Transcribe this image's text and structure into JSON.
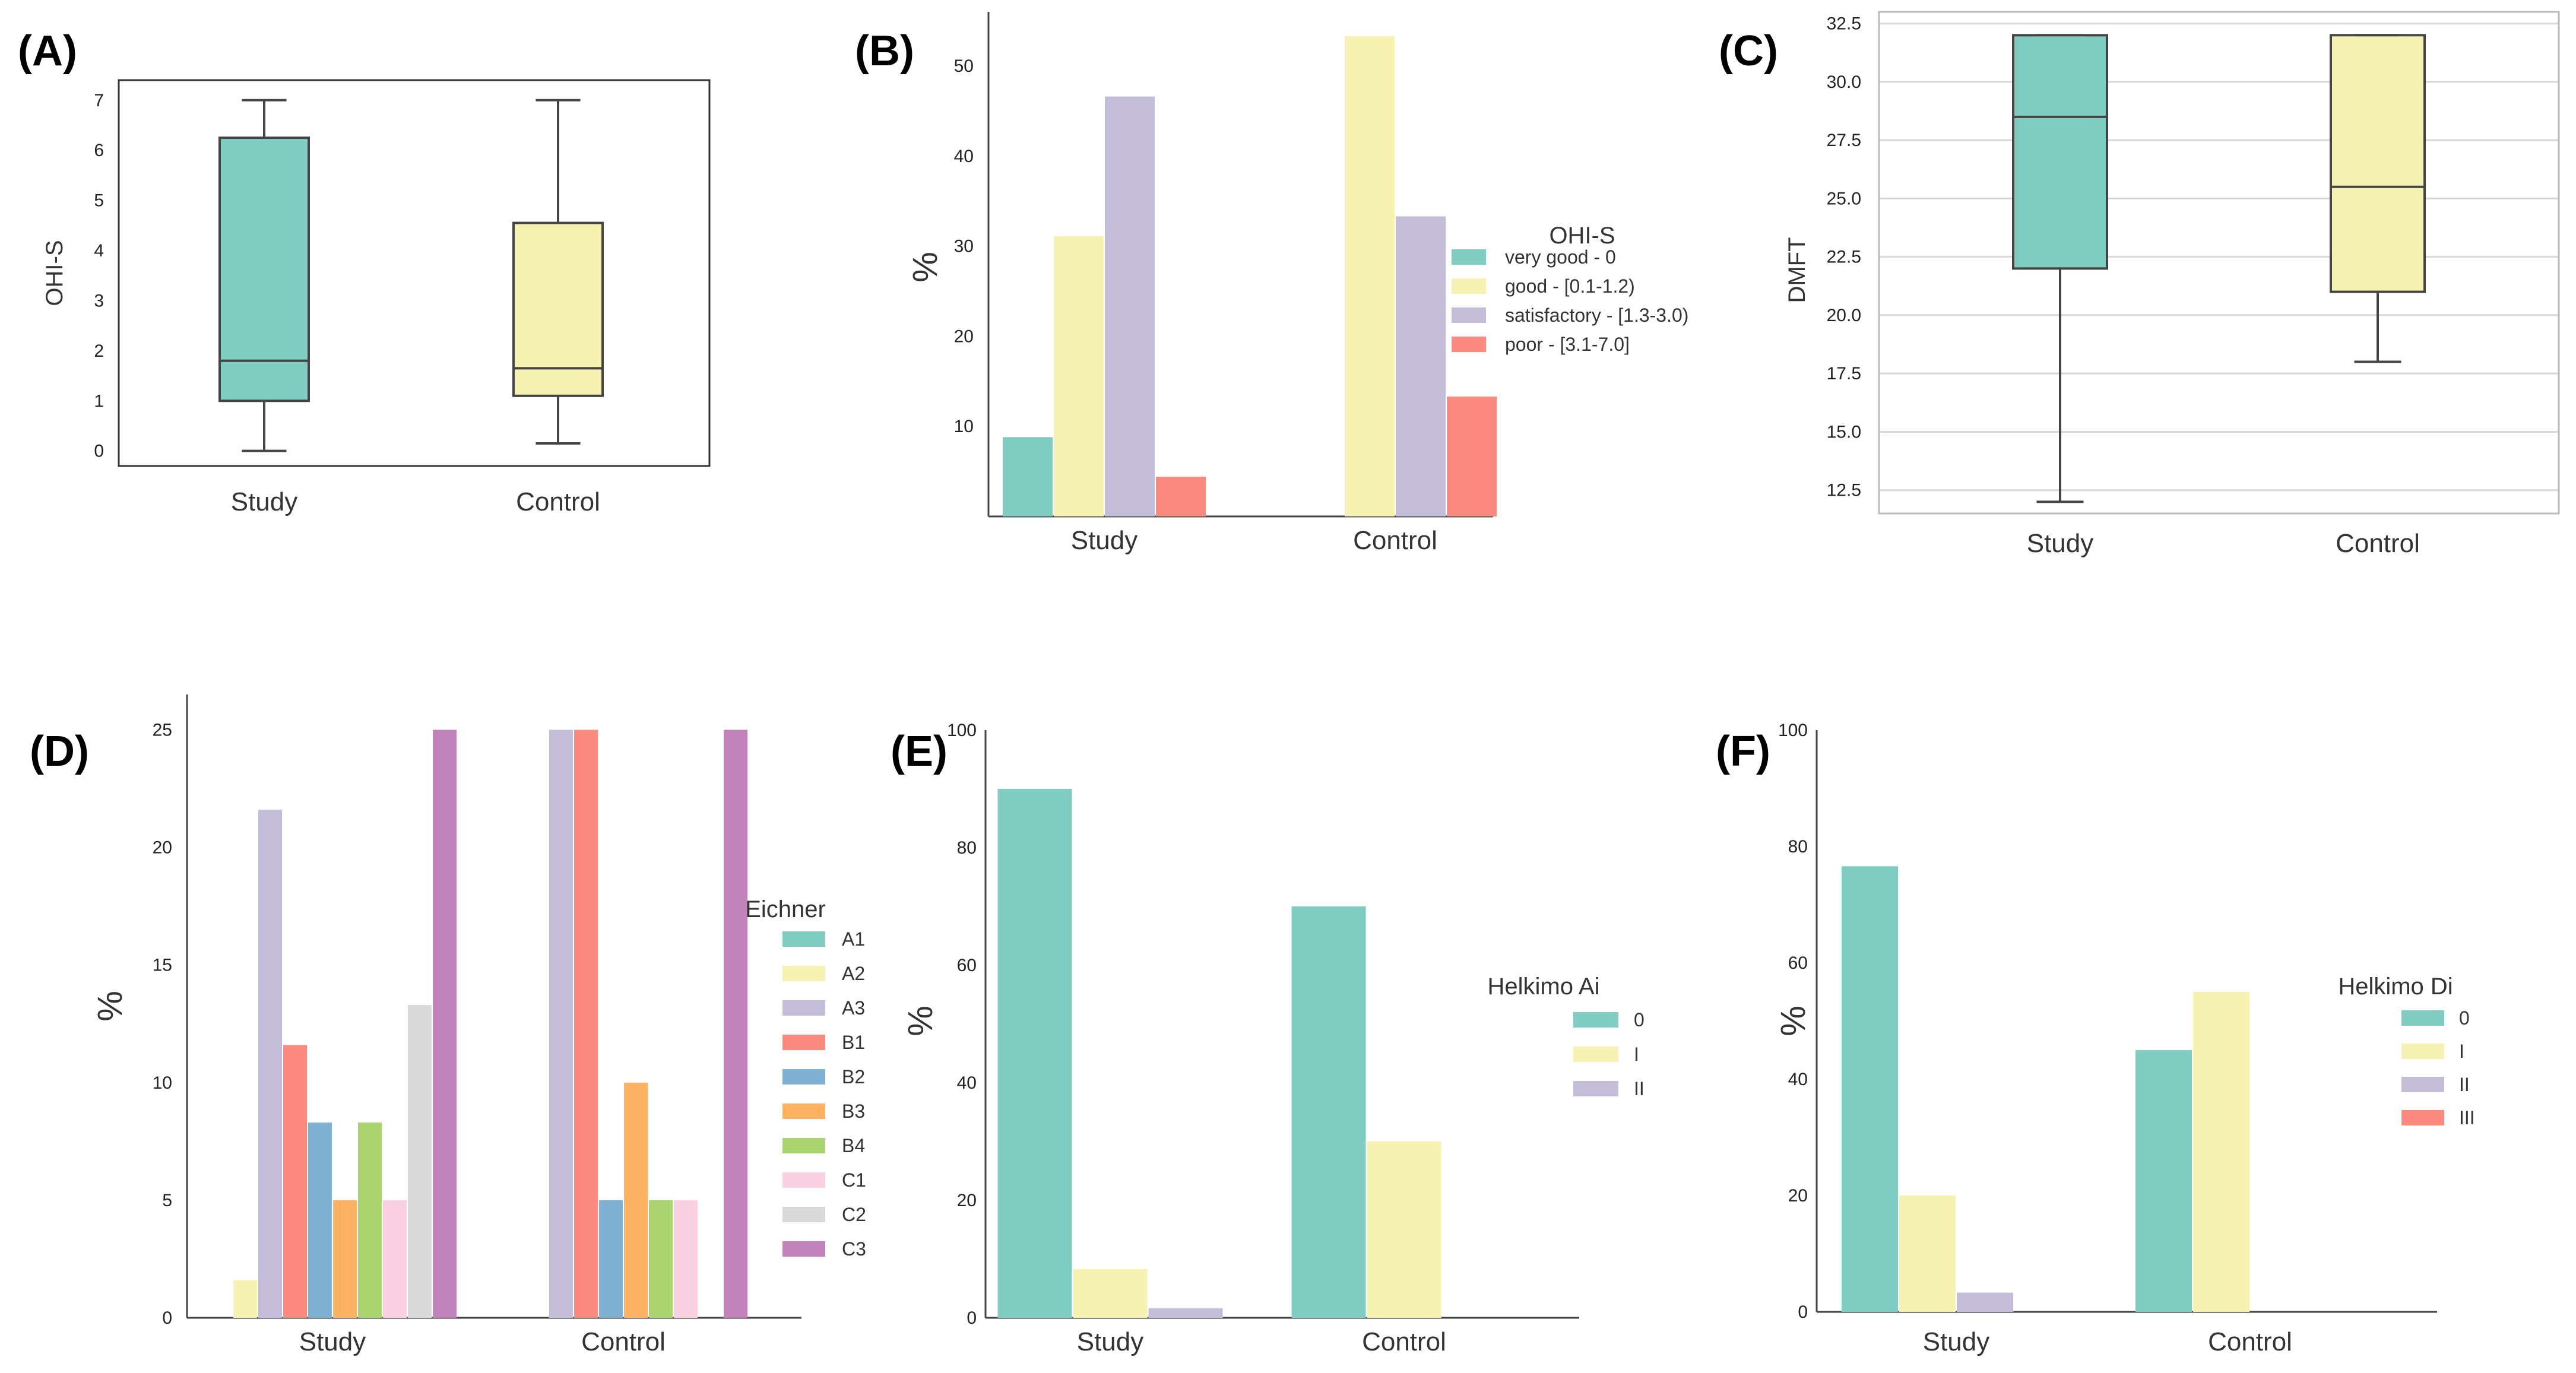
{
  "chart_data": [
    {
      "panel": "(A)",
      "type": "box",
      "ylabel": "OHI-S",
      "categories": [
        "Study",
        "Control"
      ],
      "yticks": [
        0,
        1,
        2,
        3,
        4,
        5,
        6,
        7
      ],
      "ylim": [
        -0.3,
        7.4
      ],
      "boxes": [
        {
          "name": "Study",
          "min": 0,
          "q1": 1.0,
          "median": 1.8,
          "q3": 6.25,
          "max": 7,
          "color": "#7fccc0"
        },
        {
          "name": "Control",
          "min": 0.15,
          "q1": 1.1,
          "median": 1.65,
          "q3": 4.55,
          "max": 7,
          "color": "#f6f2b2"
        }
      ],
      "grid": false
    },
    {
      "panel": "(B)",
      "type": "bar",
      "ylabel": "%",
      "categories": [
        "Study",
        "Control"
      ],
      "yticks": [
        10,
        20,
        30,
        40,
        50
      ],
      "ylim": [
        0,
        56
      ],
      "legend_title": "OHI-S",
      "series": [
        {
          "name": "very good - 0",
          "values": [
            8.8,
            0
          ],
          "color": "#7fccc0"
        },
        {
          "name": "good - [0.1-1.2)",
          "values": [
            31.1,
            53.3
          ],
          "color": "#f6f2b2"
        },
        {
          "name": "satisfactory - [1.3-3.0)",
          "values": [
            46.6,
            33.3
          ],
          "color": "#c3bdd9"
        },
        {
          "name": "poor - [3.1-7.0]",
          "values": [
            4.4,
            13.3
          ],
          "color": "#fb8a7f"
        }
      ],
      "grid": false
    },
    {
      "panel": "(C)",
      "type": "box",
      "ylabel": "DMFT",
      "categories": [
        "Study",
        "Control"
      ],
      "yticks": [
        "12.5",
        "15.0",
        "17.5",
        "20.0",
        "22.5",
        "25.0",
        "27.5",
        "30.0",
        "32.5"
      ],
      "ylim": [
        11.5,
        33.0
      ],
      "boxes": [
        {
          "name": "Study",
          "min": 12,
          "q1": 22,
          "median": 28.5,
          "q3": 32,
          "max": 32,
          "color": "#7fccc0"
        },
        {
          "name": "Control",
          "min": 18,
          "q1": 21,
          "median": 25.5,
          "q3": 32,
          "max": 32,
          "color": "#f6f2b2"
        }
      ],
      "grid": true
    },
    {
      "panel": "(D)",
      "type": "bar",
      "ylabel": "%",
      "categories": [
        "Study",
        "Control"
      ],
      "yticks": [
        0,
        5,
        10,
        15,
        20,
        25
      ],
      "ylim": [
        0,
        26.5
      ],
      "legend_title": "Eichner",
      "series": [
        {
          "name": "A1",
          "values": [
            0,
            0
          ],
          "color": "#7fccc0"
        },
        {
          "name": "A2",
          "values": [
            1.6,
            0
          ],
          "color": "#f6f2b2"
        },
        {
          "name": "A3",
          "values": [
            21.6,
            25
          ],
          "color": "#c3bdd9"
        },
        {
          "name": "B1",
          "values": [
            11.6,
            25
          ],
          "color": "#fb8a7f"
        },
        {
          "name": "B2",
          "values": [
            8.3,
            5
          ],
          "color": "#7eb1d2"
        },
        {
          "name": "B3",
          "values": [
            5,
            10
          ],
          "color": "#fdb362"
        },
        {
          "name": "B4",
          "values": [
            8.3,
            5
          ],
          "color": "#a9d46f"
        },
        {
          "name": "C1",
          "values": [
            5,
            5
          ],
          "color": "#fbd0e0"
        },
        {
          "name": "C2",
          "values": [
            13.3,
            0
          ],
          "color": "#d9d9d9"
        },
        {
          "name": "C3",
          "values": [
            25,
            25
          ],
          "color": "#c283bb"
        }
      ],
      "grid": false
    },
    {
      "panel": "(E)",
      "type": "bar",
      "ylabel": "%",
      "categories": [
        "Study",
        "Control"
      ],
      "yticks": [
        0,
        20,
        40,
        60,
        80,
        100
      ],
      "ylim": [
        0,
        100
      ],
      "legend_title": "Helkimo Ai",
      "series": [
        {
          "name": "0",
          "values": [
            90,
            70
          ],
          "color": "#7fccc0"
        },
        {
          "name": "I",
          "values": [
            8.3,
            30
          ],
          "color": "#f6f2b2"
        },
        {
          "name": "II",
          "values": [
            1.6,
            0
          ],
          "color": "#c3bdd9"
        }
      ],
      "grid": false
    },
    {
      "panel": "(F)",
      "type": "bar",
      "ylabel": "%",
      "categories": [
        "Study",
        "Control"
      ],
      "yticks": [
        0,
        20,
        40,
        60,
        80,
        100
      ],
      "ylim": [
        0,
        100
      ],
      "legend_title": "Helkimo Di",
      "series": [
        {
          "name": "0",
          "values": [
            76.6,
            45
          ],
          "color": "#7fccc0"
        },
        {
          "name": "I",
          "values": [
            20,
            55
          ],
          "color": "#f6f2b2"
        },
        {
          "name": "II",
          "values": [
            3.3,
            0
          ],
          "color": "#c3bdd9"
        },
        {
          "name": "III",
          "values": [
            0,
            0
          ],
          "color": "#fb8a7f"
        }
      ],
      "grid": false
    }
  ]
}
